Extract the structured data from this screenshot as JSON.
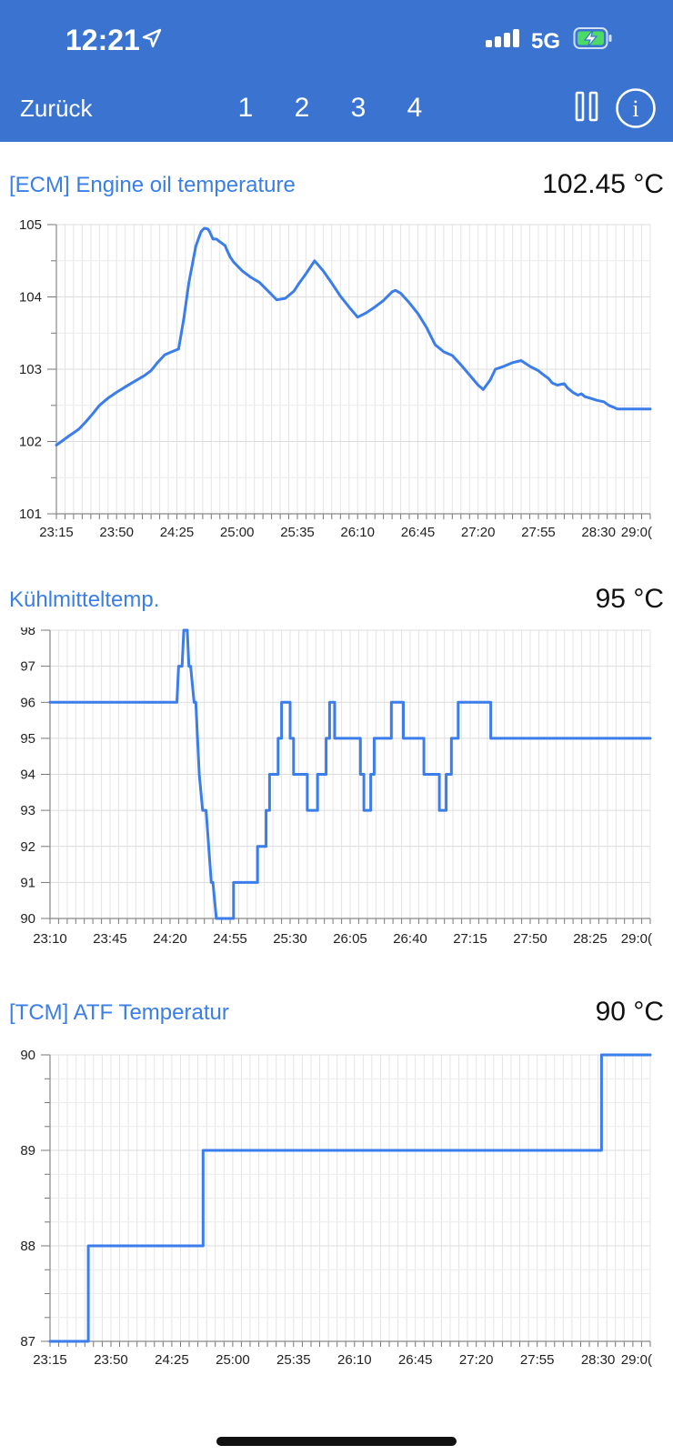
{
  "status_bar": {
    "time": "12:21",
    "network": "5G",
    "location_icon": "location-arrow-icon",
    "signal_icon": "signal-bars-icon",
    "battery_icon": "battery-charging-icon",
    "battery_color": "#4cd964"
  },
  "nav": {
    "back_label": "Zurück",
    "tabs": [
      "1",
      "2",
      "3",
      "4"
    ],
    "pause_icon": "pause-icon",
    "info_icon": "info-icon",
    "info_label": "i"
  },
  "colors": {
    "header": "#3a74d0",
    "accent": "#3a7ee8",
    "line": "#3b7deb"
  },
  "charts": [
    {
      "title": "[ECM] Engine oil temperature",
      "current_value": "102.45 °C"
    },
    {
      "title": "Kühlmitteltemp.",
      "current_value": "95 °C"
    },
    {
      "title": "[TCM] ATF Temperatur",
      "current_value": "90 °C"
    }
  ],
  "chart_data": [
    {
      "type": "line",
      "title": "[ECM] Engine oil temperature",
      "ylim": [
        101,
        105
      ],
      "yticks": [
        "101",
        "102",
        "103",
        "104",
        "105"
      ],
      "xlim": [
        1395,
        1740
      ],
      "xtick_values": [
        1395,
        1430,
        1465,
        1500,
        1535,
        1570,
        1605,
        1640,
        1675,
        1710,
        1740
      ],
      "xtick_labels": [
        "23:15",
        "23:50",
        "24:25",
        "25:00",
        "25:35",
        "26:10",
        "26:45",
        "27:20",
        "27:55",
        "28:30",
        "29:0("
      ],
      "grid": true,
      "series": [
        {
          "x": [
            1395,
            1402,
            1408,
            1412,
            1416,
            1420,
            1425,
            1430,
            1436,
            1441,
            1446,
            1450,
            1454,
            1458,
            1462,
            1466,
            1469,
            1472,
            1476,
            1479,
            1480,
            1481,
            1483,
            1484,
            1486,
            1488,
            1489,
            1493,
            1494,
            1496,
            1498,
            1503,
            1508,
            1513,
            1518,
            1523,
            1528,
            1533,
            1536,
            1540,
            1545,
            1550,
            1555,
            1560,
            1565,
            1570,
            1575,
            1580,
            1585,
            1590,
            1592,
            1595,
            1600,
            1605,
            1610,
            1615,
            1620,
            1625,
            1630,
            1635,
            1640,
            1643,
            1647,
            1650,
            1655,
            1660,
            1665,
            1670,
            1675,
            1677,
            1681,
            1683,
            1686,
            1690,
            1692,
            1695,
            1698,
            1700,
            1702,
            1705,
            1709,
            1713,
            1716,
            1719,
            1721,
            1725,
            1729,
            1734,
            1738,
            1740
          ],
          "y": [
            101.95,
            102.07,
            102.17,
            102.27,
            102.38,
            102.5,
            102.6,
            102.68,
            102.77,
            102.84,
            102.91,
            102.98,
            103.1,
            103.2,
            103.24,
            103.28,
            103.7,
            104.2,
            104.7,
            104.9,
            104.93,
            104.95,
            104.94,
            104.9,
            104.8,
            104.8,
            104.78,
            104.71,
            104.65,
            104.55,
            104.48,
            104.36,
            104.27,
            104.2,
            104.08,
            103.96,
            103.98,
            104.08,
            104.19,
            104.32,
            104.5,
            104.36,
            104.19,
            104.01,
            103.86,
            103.72,
            103.78,
            103.86,
            103.95,
            104.07,
            104.09,
            104.05,
            103.92,
            103.77,
            103.58,
            103.34,
            103.24,
            103.19,
            103.06,
            102.92,
            102.78,
            102.72,
            102.85,
            103.0,
            103.04,
            103.09,
            103.12,
            103.04,
            102.98,
            102.94,
            102.87,
            102.81,
            102.78,
            102.8,
            102.74,
            102.68,
            102.64,
            102.66,
            102.62,
            102.6,
            102.57,
            102.55,
            102.5,
            102.47,
            102.45,
            102.45,
            102.45,
            102.45,
            102.45,
            102.45
          ]
        }
      ]
    },
    {
      "type": "line",
      "title": "Kühlmitteltemp.",
      "ylim": [
        90,
        98
      ],
      "yticks": [
        "90",
        "91",
        "92",
        "93",
        "94",
        "95",
        "96",
        "97",
        "98"
      ],
      "xlim": [
        1390,
        1740
      ],
      "xtick_values": [
        1390,
        1425,
        1460,
        1495,
        1530,
        1565,
        1600,
        1635,
        1670,
        1705,
        1740
      ],
      "xtick_labels": [
        "23:10",
        "23:45",
        "24:20",
        "24:55",
        "25:30",
        "26:05",
        "26:40",
        "27:15",
        "27:50",
        "28:25",
        "29:0("
      ],
      "grid": true,
      "series": [
        {
          "x": [
            1390,
            1464,
            1465,
            1467,
            1468,
            1470,
            1471,
            1472,
            1474,
            1475,
            1476,
            1477,
            1479,
            1481,
            1484,
            1485,
            1487,
            1497,
            1497,
            1511,
            1511,
            1516,
            1516,
            1518,
            1518,
            1523,
            1523,
            1525,
            1525,
            1530,
            1530,
            1532,
            1532,
            1540,
            1540,
            1546,
            1546,
            1551,
            1551,
            1553,
            1553,
            1556,
            1556,
            1571,
            1571,
            1573,
            1573,
            1577,
            1577,
            1579,
            1579,
            1589,
            1589,
            1596,
            1596,
            1608,
            1608,
            1617,
            1617,
            1621,
            1621,
            1624,
            1624,
            1628,
            1628,
            1647,
            1647,
            1652,
            1652,
            1654,
            1654,
            1665,
            1665,
            1671,
            1671,
            1692,
            1692,
            1695,
            1695,
            1740
          ],
          "y": [
            96,
            96,
            97,
            97,
            98,
            98,
            97,
            97,
            96,
            96,
            95,
            94,
            93,
            93,
            91,
            91,
            90,
            90,
            91,
            91,
            92,
            92,
            93,
            93,
            94,
            94,
            95,
            95,
            96,
            96,
            95,
            95,
            94,
            94,
            93,
            93,
            94,
            94,
            95,
            95,
            96,
            96,
            95,
            95,
            94,
            94,
            93,
            93,
            94,
            94,
            95,
            95,
            96,
            96,
            95,
            95,
            94,
            94,
            93,
            93,
            94,
            94,
            95,
            95,
            96,
            96,
            95,
            95,
            95,
            95,
            95,
            95,
            95,
            95,
            95,
            95,
            95,
            95,
            95,
            95
          ]
        }
      ]
    },
    {
      "type": "line",
      "title": "[TCM] ATF Temperatur",
      "ylim": [
        87,
        90
      ],
      "yticks": [
        "87",
        "88",
        "89",
        "90"
      ],
      "xlim": [
        1395,
        1740
      ],
      "xtick_values": [
        1395,
        1430,
        1465,
        1500,
        1535,
        1570,
        1605,
        1640,
        1675,
        1710,
        1740
      ],
      "xtick_labels": [
        "23:15",
        "23:50",
        "24:25",
        "25:00",
        "25:35",
        "26:10",
        "26:45",
        "27:20",
        "27:55",
        "28:30",
        "29:0("
      ],
      "grid": true,
      "series": [
        {
          "x": [
            1395,
            1417,
            1417,
            1483,
            1483,
            1712,
            1712,
            1740
          ],
          "y": [
            87,
            87,
            88,
            88,
            89,
            89,
            90,
            90
          ]
        }
      ]
    }
  ]
}
